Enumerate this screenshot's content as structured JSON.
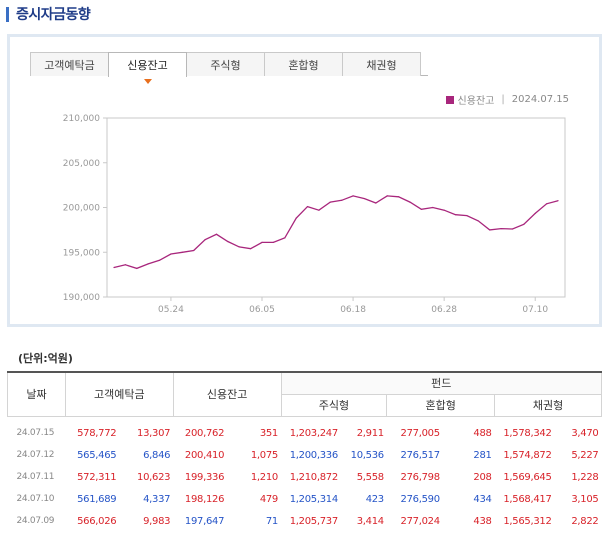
{
  "page": {
    "title": "증시자금동향"
  },
  "tabs": [
    {
      "label": "고객예탁금",
      "active": false
    },
    {
      "label": "신용잔고",
      "active": true
    },
    {
      "label": "주식형",
      "active": false
    },
    {
      "label": "혼합형",
      "active": false
    },
    {
      "label": "채권형",
      "active": false
    }
  ],
  "legend": {
    "series": "신용잔고",
    "separator": "|",
    "date": "2024.07.15",
    "color": "#a8267c"
  },
  "chart_data": {
    "type": "line",
    "title": "",
    "xlabel": "",
    "ylabel": "",
    "ylim": [
      190000,
      210000
    ],
    "y_ticks": [
      190000,
      195000,
      200000,
      205000,
      210000
    ],
    "y_tick_labels": [
      "190,000",
      "195,000",
      "200,000",
      "205,000",
      "210,000"
    ],
    "x_tick_labels": [
      {
        "label": "05.24",
        "index": 5
      },
      {
        "label": "06.05",
        "index": 13
      },
      {
        "label": "06.18",
        "index": 21
      },
      {
        "label": "06.28",
        "index": 29
      },
      {
        "label": "07.10",
        "index": 37
      }
    ],
    "grid": false,
    "series": [
      {
        "name": "신용잔고",
        "color": "#a8267c",
        "values": [
          193300,
          193600,
          193200,
          193700,
          194100,
          194800,
          195000,
          195200,
          196400,
          197000,
          196200,
          195600,
          195400,
          196100,
          196100,
          196600,
          198800,
          200100,
          199700,
          200600,
          200800,
          201300,
          201000,
          200500,
          201300,
          201200,
          200600,
          199800,
          200000,
          199700,
          199200,
          199100,
          198500,
          197500,
          197647,
          197600,
          198126,
          199336,
          200410,
          200762
        ]
      }
    ]
  },
  "table": {
    "unit_label": "(단위:억원)",
    "headers": {
      "date": "날짜",
      "deposit": "고객예탁금",
      "credit": "신용잔고",
      "fund": "펀드",
      "stock": "주식형",
      "mixed": "혼합형",
      "bond": "채권형"
    },
    "rows": [
      {
        "date": "24.07.15",
        "deposit": "578,772",
        "deposit_chg": "13,307",
        "deposit_color": "red",
        "credit": "200,762",
        "credit_chg": "351",
        "credit_color": "red",
        "stock": "1,203,247",
        "stock_chg": "2,911",
        "stock_color": "red",
        "mixed": "277,005",
        "mixed_chg": "488",
        "mixed_color": "red",
        "bond": "1,578,342",
        "bond_chg": "3,470",
        "bond_color": "red"
      },
      {
        "date": "24.07.12",
        "deposit": "565,465",
        "deposit_chg": "6,846",
        "deposit_color": "blue",
        "credit": "200,410",
        "credit_chg": "1,075",
        "credit_color": "red",
        "stock": "1,200,336",
        "stock_chg": "10,536",
        "stock_color": "blue",
        "mixed": "276,517",
        "mixed_chg": "281",
        "mixed_color": "blue",
        "bond": "1,574,872",
        "bond_chg": "5,227",
        "bond_color": "red"
      },
      {
        "date": "24.07.11",
        "deposit": "572,311",
        "deposit_chg": "10,623",
        "deposit_color": "red",
        "credit": "199,336",
        "credit_chg": "1,210",
        "credit_color": "red",
        "stock": "1,210,872",
        "stock_chg": "5,558",
        "stock_color": "red",
        "mixed": "276,798",
        "mixed_chg": "208",
        "mixed_color": "red",
        "bond": "1,569,645",
        "bond_chg": "1,228",
        "bond_color": "red"
      },
      {
        "date": "24.07.10",
        "deposit": "561,689",
        "deposit_chg": "4,337",
        "deposit_color": "blue",
        "credit": "198,126",
        "credit_chg": "479",
        "credit_color": "red",
        "stock": "1,205,314",
        "stock_chg": "423",
        "stock_color": "blue",
        "mixed": "276,590",
        "mixed_chg": "434",
        "mixed_color": "blue",
        "bond": "1,568,417",
        "bond_chg": "3,105",
        "bond_color": "red"
      },
      {
        "date": "24.07.09",
        "deposit": "566,026",
        "deposit_chg": "9,983",
        "deposit_color": "red",
        "credit": "197,647",
        "credit_chg": "71",
        "credit_color": "blue",
        "stock": "1,205,737",
        "stock_chg": "3,414",
        "stock_color": "red",
        "mixed": "277,024",
        "mixed_chg": "438",
        "mixed_color": "red",
        "bond": "1,565,312",
        "bond_chg": "2,822",
        "bond_color": "red"
      }
    ]
  }
}
